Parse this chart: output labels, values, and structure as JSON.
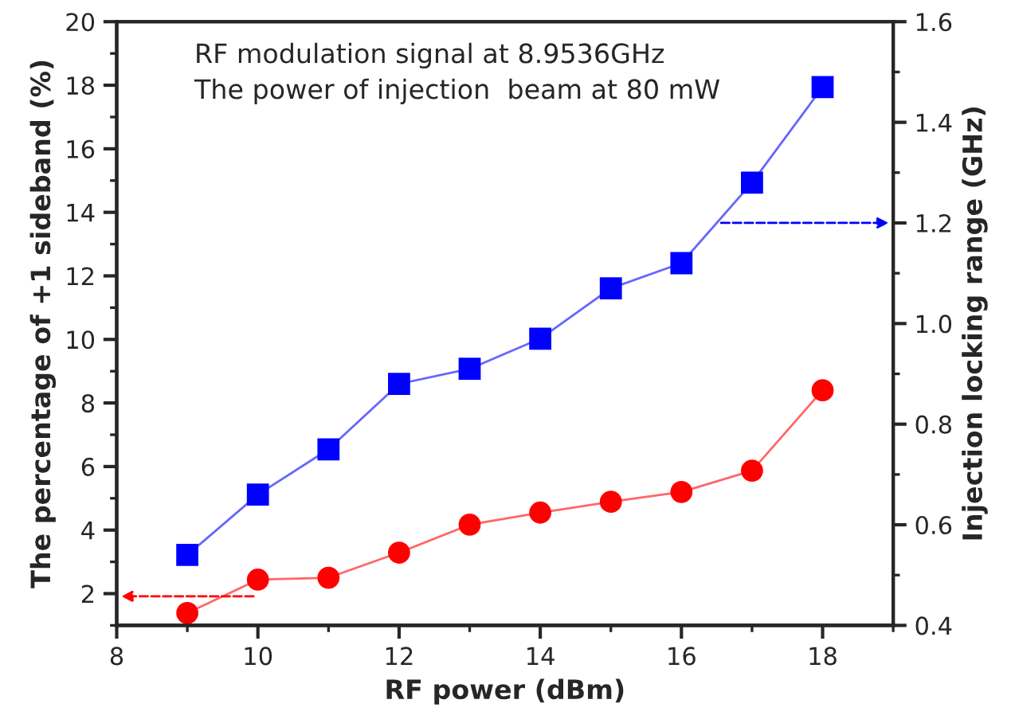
{
  "chart_data": {
    "type": "line",
    "xlabel": "RF power (dBm)",
    "ylabel": "The percentage of +1 sideband (%)",
    "y2label": "Injection locking range (GHz)",
    "annotations": [
      "RF modulation signal at 8.9536GHz\nThe power of injection  beam at 80 mW"
    ],
    "x": [
      9,
      10,
      11,
      12,
      13,
      14,
      15,
      16,
      17,
      18
    ],
    "series": [
      {
        "color": "#0000ff",
        "axis": "y2",
        "marker": "square",
        "values": [
          0.54,
          0.66,
          0.75,
          0.88,
          0.91,
          0.97,
          1.07,
          1.12,
          1.28,
          1.47
        ]
      },
      {
        "color": "#ff0000",
        "marker": "circle",
        "values": [
          1.39,
          2.44,
          2.5,
          3.29,
          4.17,
          4.55,
          4.89,
          5.2,
          5.87,
          8.4
        ]
      }
    ],
    "xlim": [
      8,
      19
    ],
    "xticks": [
      8,
      10,
      12,
      14,
      16,
      18
    ],
    "ylim": [
      1,
      20
    ],
    "yticks": [
      2,
      4,
      6,
      8,
      10,
      12,
      14,
      16,
      18,
      20
    ],
    "y2lim": [
      0.4,
      1.6
    ],
    "y2ticks": [
      0.4,
      0.6,
      0.8,
      {
        "value": 1,
        "label": "1.0"
      },
      1.2,
      1.4,
      1.6
    ],
    "grid": false,
    "line_style": "solid"
  }
}
